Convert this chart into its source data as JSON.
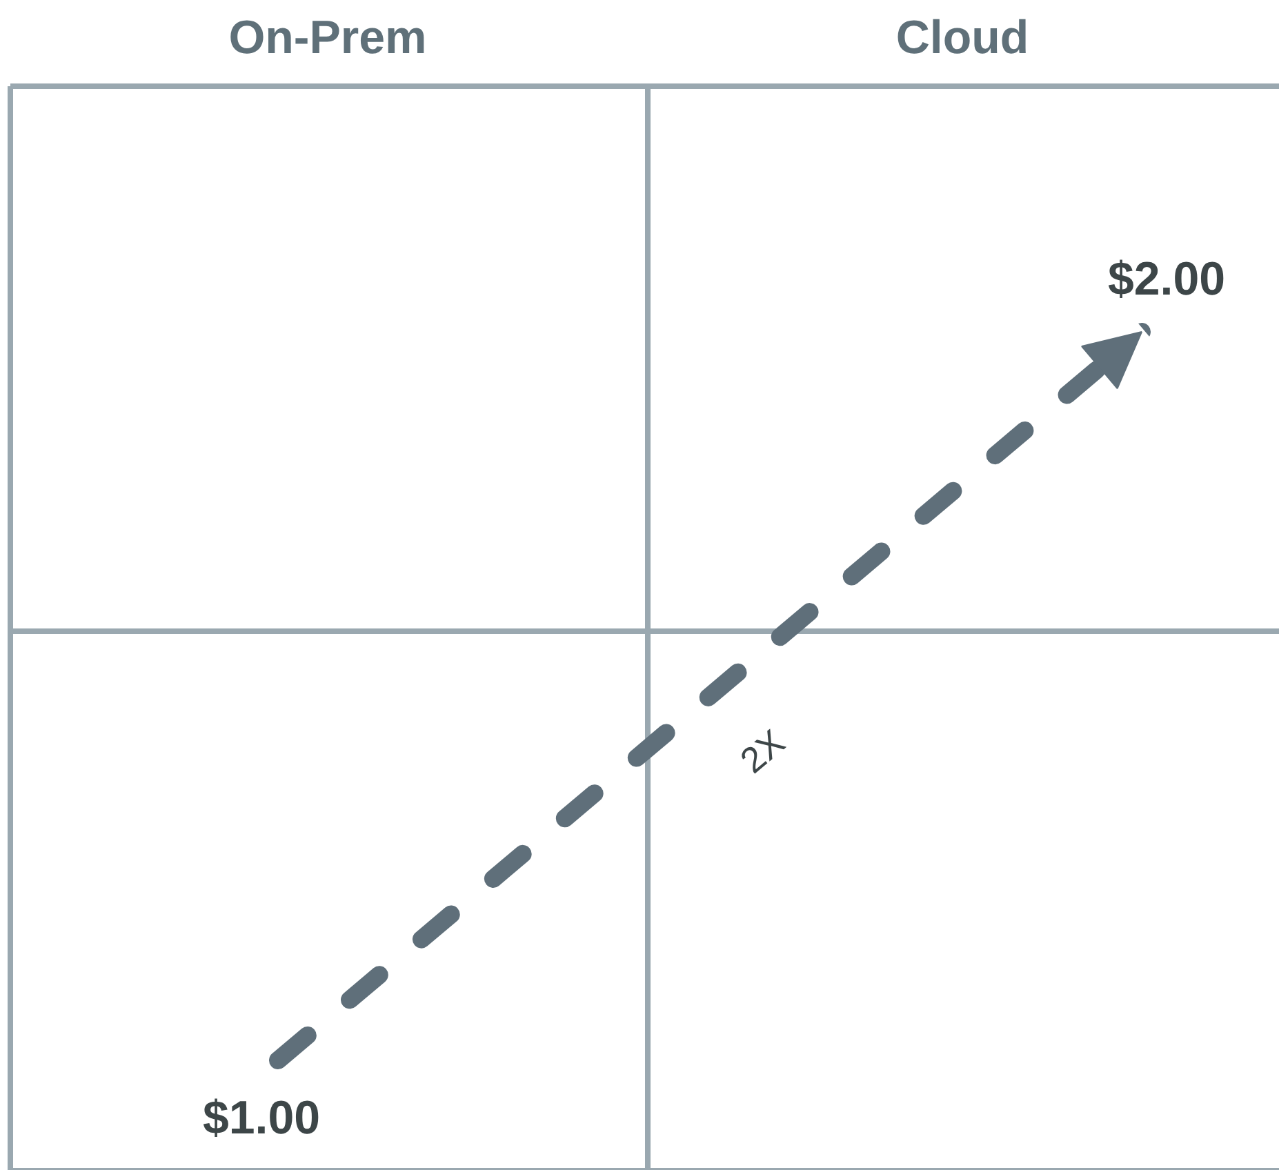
{
  "chart_data": {
    "type": "other",
    "categories": [
      "On-Prem",
      "Cloud"
    ],
    "values": [
      1,
      2
    ],
    "value_labels": [
      "$1.00",
      "$2.00"
    ],
    "color": "#5f6f7a",
    "annotations": [
      "2X"
    ]
  }
}
